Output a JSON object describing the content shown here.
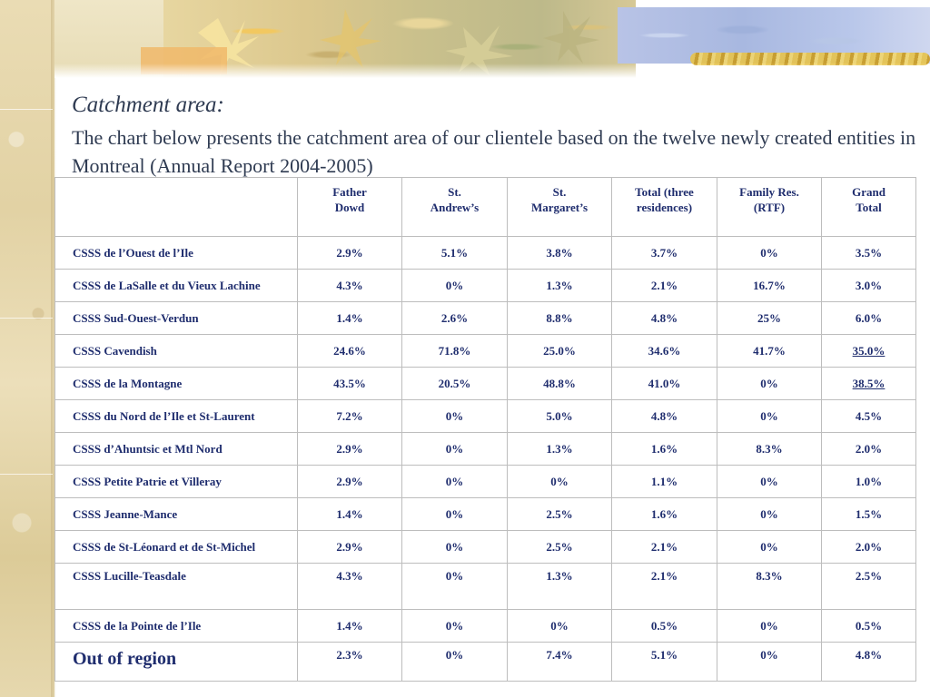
{
  "heading": {
    "title": "Catchment area:",
    "description": "The chart below presents the catchment area of our clientele based on the twelve newly created entities in Montreal (Annual Report 2004-2005)"
  },
  "colors": {
    "text": "#1f2d6e",
    "heading_text": "#2f3b52",
    "border": "#bdbdbd"
  },
  "table": {
    "headers": [
      "",
      "Father\nDowd",
      "St.\nAndrew’s",
      "St.\nMargaret’s",
      "Total (three\nresidences)",
      "Family Res.\n(RTF)",
      "Grand\nTotal"
    ],
    "rows": [
      [
        "CSSS de l’Ouest de l’Ile",
        "2.9%",
        "5.1%",
        "3.8%",
        "3.7%",
        "0%",
        "3.5%"
      ],
      [
        "CSSS de LaSalle et du Vieux Lachine",
        "4.3%",
        "0%",
        "1.3%",
        "2.1%",
        "16.7%",
        "3.0%"
      ],
      [
        "CSSS Sud-Ouest-Verdun",
        "1.4%",
        "2.6%",
        "8.8%",
        "4.8%",
        "25%",
        "6.0%"
      ],
      [
        "CSSS Cavendish",
        "24.6%",
        "71.8%",
        "25.0%",
        "34.6%",
        "41.7%",
        "35.0%"
      ],
      [
        "CSSS de la Montagne",
        "43.5%",
        "20.5%",
        "48.8%",
        "41.0%",
        "0%",
        "38.5%"
      ],
      [
        "CSSS du Nord de l’Ile et St-Laurent",
        "7.2%",
        "0%",
        "5.0%",
        "4.8%",
        "0%",
        "4.5%"
      ],
      [
        "CSSS d’Ahuntsic et Mtl Nord",
        "2.9%",
        "0%",
        "1.3%",
        "1.6%",
        "8.3%",
        "2.0%"
      ],
      [
        "CSSS Petite Patrie et Villeray",
        "2.9%",
        "0%",
        "0%",
        "1.1%",
        "0%",
        "1.0%"
      ],
      [
        "CSSS Jeanne-Mance",
        "1.4%",
        "0%",
        "2.5%",
        "1.6%",
        "0%",
        "1.5%"
      ],
      [
        "CSSS de St-Léonard et de St-Michel",
        "2.9%",
        "0%",
        "2.5%",
        "2.1%",
        "0%",
        "2.0%"
      ],
      [
        "CSSS Lucille-Teasdale",
        "4.3%",
        "0%",
        "1.3%",
        "2.1%",
        "8.3%",
        "2.5%"
      ],
      [
        "CSSS de la Pointe de l’Ile",
        "1.4%",
        "0%",
        "0%",
        "0.5%",
        "0%",
        "0.5%"
      ],
      [
        "Out of region",
        "2.3%",
        "0%",
        "7.4%",
        "5.1%",
        "0%",
        "4.8%"
      ]
    ]
  }
}
